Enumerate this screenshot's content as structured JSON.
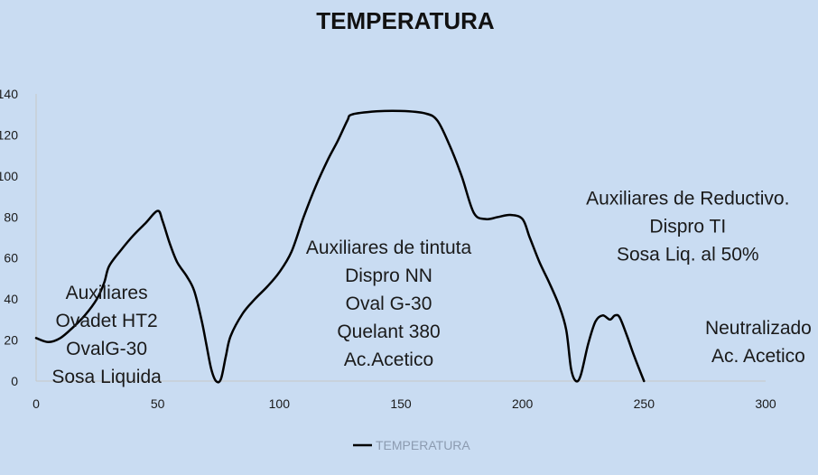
{
  "chart_data": {
    "type": "line",
    "title": "TEMPERATURA",
    "xlabel": "",
    "ylabel": "",
    "xlim": [
      0,
      300
    ],
    "ylim": [
      0,
      140
    ],
    "x_ticks": [
      0,
      50,
      100,
      150,
      200,
      250,
      300
    ],
    "y_ticks": [
      0,
      20,
      40,
      60,
      80,
      100,
      120,
      140
    ],
    "grid": false,
    "legend": "bottom",
    "series": [
      {
        "name": "TEMPERATURA",
        "color": "#000000",
        "points": [
          [
            0,
            21
          ],
          [
            5,
            19
          ],
          [
            10,
            21
          ],
          [
            15,
            26
          ],
          [
            20,
            32
          ],
          [
            25,
            40
          ],
          [
            28,
            48
          ],
          [
            30,
            56
          ],
          [
            35,
            64
          ],
          [
            40,
            71
          ],
          [
            45,
            77
          ],
          [
            50,
            83
          ],
          [
            52,
            78
          ],
          [
            55,
            67
          ],
          [
            58,
            58
          ],
          [
            62,
            51
          ],
          [
            65,
            44
          ],
          [
            68,
            30
          ],
          [
            70,
            18
          ],
          [
            72,
            6
          ],
          [
            74,
            0
          ],
          [
            76,
            1
          ],
          [
            78,
            12
          ],
          [
            80,
            22
          ],
          [
            85,
            33
          ],
          [
            90,
            40
          ],
          [
            95,
            46
          ],
          [
            100,
            53
          ],
          [
            105,
            63
          ],
          [
            110,
            80
          ],
          [
            115,
            95
          ],
          [
            120,
            108
          ],
          [
            124,
            117
          ],
          [
            128,
            127
          ],
          [
            130,
            130
          ],
          [
            140,
            131.5
          ],
          [
            150,
            131.7
          ],
          [
            160,
            130.5
          ],
          [
            165,
            127
          ],
          [
            170,
            115
          ],
          [
            175,
            100
          ],
          [
            180,
            82
          ],
          [
            185,
            79
          ],
          [
            190,
            80
          ],
          [
            195,
            81
          ],
          [
            200,
            79
          ],
          [
            203,
            70
          ],
          [
            207,
            58
          ],
          [
            211,
            48
          ],
          [
            215,
            37
          ],
          [
            218,
            25
          ],
          [
            220,
            6
          ],
          [
            222,
            0
          ],
          [
            224,
            3
          ],
          [
            227,
            18
          ],
          [
            230,
            29
          ],
          [
            233,
            32
          ],
          [
            236,
            30
          ],
          [
            238,
            32
          ],
          [
            240,
            31
          ],
          [
            243,
            22
          ],
          [
            246,
            12
          ],
          [
            250,
            0
          ]
        ]
      }
    ],
    "annotations": [
      {
        "lines": [
          "Auxiliares",
          "Ovadet HT2",
          "OvalG-30",
          "Sosa Liquida"
        ],
        "x": 29,
        "y": 40
      },
      {
        "lines": [
          "Auxiliares de tintuta",
          "Dispro NN",
          "Oval G-30",
          "Quelant 380",
          "Ac.Acetico"
        ],
        "x": 145,
        "y": 62
      },
      {
        "lines": [
          "Auxiliares de Reductivo.",
          "Dispro TI",
          "Sosa Liq. al 50%"
        ],
        "x": 268,
        "y": 86
      },
      {
        "lines": [
          "Neutralizado",
          "Ac. Acetico"
        ],
        "x": 297,
        "y": 23
      }
    ]
  }
}
